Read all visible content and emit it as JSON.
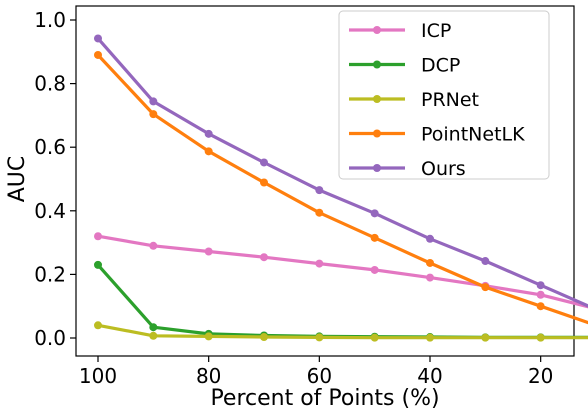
{
  "chart_data": {
    "type": "line",
    "xlabel": "Percent of Points (%)",
    "ylabel": "AUC",
    "xlim": [
      100,
      10
    ],
    "ylim": [
      0.0,
      1.0
    ],
    "x_inverted": true,
    "x_ticks": [
      100,
      80,
      60,
      40,
      20
    ],
    "y_ticks": [
      0.0,
      0.2,
      0.4,
      0.6,
      0.8,
      1.0
    ],
    "x_tick_labels": [
      "100",
      "80",
      "60",
      "40",
      "20"
    ],
    "y_tick_labels": [
      "0.0",
      "0.2",
      "0.4",
      "0.6",
      "0.8",
      "1.0"
    ],
    "legend_position": "top-right",
    "grid": false,
    "x": [
      100,
      90,
      80,
      70,
      60,
      50,
      40,
      30,
      20,
      10
    ],
    "series": [
      {
        "name": "ICP",
        "color": "#e377c2",
        "values": [
          0.32,
          0.29,
          0.272,
          0.254,
          0.234,
          0.214,
          0.19,
          0.164,
          0.136,
          0.092
        ]
      },
      {
        "name": "DCP",
        "color": "#2ca02c",
        "values": [
          0.23,
          0.034,
          0.013,
          0.008,
          0.005,
          0.004,
          0.003,
          0.002,
          0.002,
          0.002
        ]
      },
      {
        "name": "PRNet",
        "color": "#bcbd22",
        "values": [
          0.04,
          0.007,
          0.005,
          0.003,
          0.002,
          0.001,
          0.001,
          0.001,
          0.001,
          0.001
        ]
      },
      {
        "name": "PointNetLK",
        "color": "#ff7f0e",
        "values": [
          0.89,
          0.704,
          0.587,
          0.489,
          0.394,
          0.315,
          0.236,
          0.16,
          0.1,
          0.04
        ]
      },
      {
        "name": "Ours",
        "color": "#9467bd",
        "values": [
          0.942,
          0.744,
          0.642,
          0.552,
          0.465,
          0.392,
          0.312,
          0.242,
          0.166,
          0.09
        ]
      }
    ]
  }
}
